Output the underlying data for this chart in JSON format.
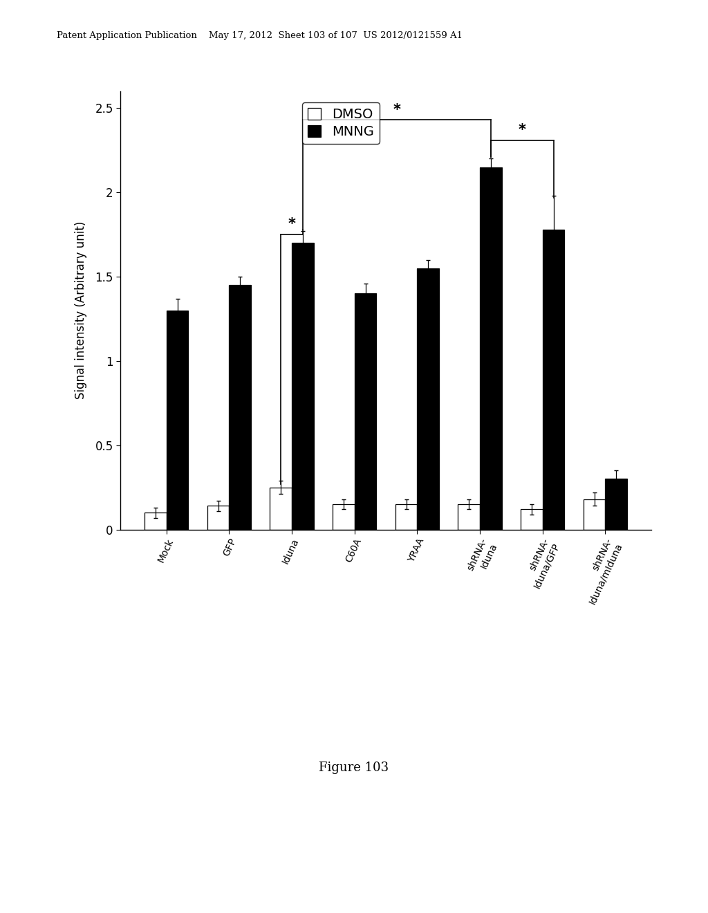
{
  "categories": [
    "Mock",
    "GFP",
    "Iduna",
    "C60A",
    "YRAA",
    "shRNA-\nIduna",
    "shRNA-\nIduna/GFP",
    "shRNA-\nIduna/mIduna"
  ],
  "tick_labels": [
    "Mock",
    "GFP",
    "Iduna",
    "C60A",
    "YRAA",
    "shRNA-\nIduna",
    "shRNA-\nIduna/GFP",
    "shRNA-\nIduna/mIduna"
  ],
  "dmso_values": [
    0.1,
    0.14,
    0.25,
    0.15,
    0.15,
    0.15,
    0.12,
    0.18
  ],
  "mnng_values": [
    1.3,
    1.45,
    1.7,
    1.4,
    1.55,
    2.15,
    1.78,
    0.3
  ],
  "dmso_errors": [
    0.03,
    0.03,
    0.04,
    0.03,
    0.03,
    0.03,
    0.03,
    0.04
  ],
  "mnng_errors": [
    0.07,
    0.05,
    0.07,
    0.06,
    0.05,
    0.05,
    0.2,
    0.05
  ],
  "ylabel": "Signal intensity (Arbitrary unit)",
  "ylim": [
    0,
    2.6
  ],
  "yticks": [
    0,
    0.5,
    1,
    1.5,
    2,
    2.5
  ],
  "bar_width": 0.35,
  "dmso_color": "#ffffff",
  "mnng_color": "#000000",
  "figure_caption": "Figure 103",
  "header_text": "Patent Application Publication    May 17, 2012  Sheet 103 of 107  US 2012/0121559 A1"
}
